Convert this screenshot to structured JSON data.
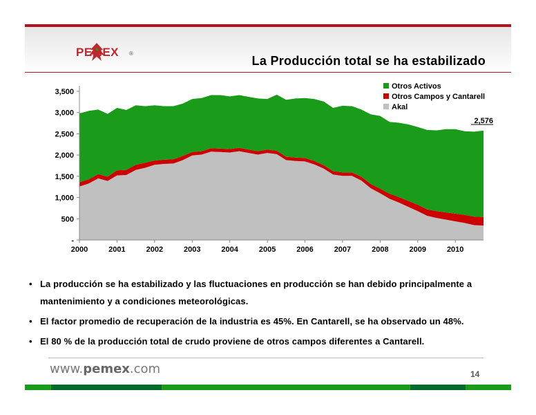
{
  "header": {
    "brand": "PEMEX",
    "registered": "®",
    "title": "La Producción total se ha estabilizado"
  },
  "chart_data": {
    "type": "area",
    "stacked": true,
    "x": [
      2000.0,
      2000.25,
      2000.5,
      2000.75,
      2001.0,
      2001.25,
      2001.5,
      2001.75,
      2002.0,
      2002.25,
      2002.5,
      2002.75,
      2003.0,
      2003.25,
      2003.5,
      2003.75,
      2004.0,
      2004.25,
      2004.5,
      2004.75,
      2005.0,
      2005.25,
      2005.5,
      2005.75,
      2006.0,
      2006.25,
      2006.5,
      2006.75,
      2007.0,
      2007.25,
      2007.5,
      2007.75,
      2008.0,
      2008.25,
      2008.5,
      2008.75,
      2009.0,
      2009.25,
      2009.5,
      2009.75,
      2010.0,
      2010.25,
      2010.5,
      2010.75
    ],
    "series": [
      {
        "name": "Akal",
        "color": "#c0c0c0",
        "values": [
          1260,
          1330,
          1450,
          1390,
          1520,
          1530,
          1650,
          1700,
          1770,
          1790,
          1800,
          1880,
          1990,
          2010,
          2080,
          2070,
          2060,
          2090,
          2050,
          2010,
          2050,
          2020,
          1880,
          1860,
          1850,
          1780,
          1680,
          1540,
          1510,
          1510,
          1400,
          1220,
          1100,
          970,
          880,
          780,
          680,
          570,
          520,
          480,
          440,
          400,
          350,
          340
        ]
      },
      {
        "name": "Otros Campos y Cantarell",
        "color": "#cc0000",
        "values": [
          100,
          100,
          100,
          100,
          120,
          120,
          120,
          120,
          100,
          100,
          100,
          100,
          80,
          80,
          80,
          80,
          80,
          80,
          80,
          80,
          80,
          80,
          80,
          80,
          80,
          80,
          80,
          80,
          80,
          80,
          90,
          100,
          110,
          120,
          130,
          140,
          150,
          150,
          160,
          170,
          180,
          190,
          200,
          200
        ]
      },
      {
        "name": "Otros Activos",
        "color": "#1a9b1a",
        "values": [
          1620,
          1610,
          1520,
          1480,
          1470,
          1410,
          1400,
          1330,
          1300,
          1260,
          1250,
          1230,
          1250,
          1250,
          1250,
          1260,
          1240,
          1240,
          1240,
          1240,
          1190,
          1320,
          1340,
          1390,
          1410,
          1460,
          1500,
          1490,
          1570,
          1560,
          1580,
          1640,
          1710,
          1690,
          1750,
          1800,
          1830,
          1870,
          1900,
          1960,
          1990,
          1970,
          2000,
          2036
        ]
      }
    ],
    "categories": [
      "2000",
      "2001",
      "2002",
      "2003",
      "2004",
      "2005",
      "2006",
      "2007",
      "2008",
      "2009",
      "2010"
    ],
    "yticks": [
      "-",
      "500",
      "1,000",
      "1,500",
      "2,000",
      "2,500",
      "3,000",
      "3,500"
    ],
    "ylim": [
      0,
      3500
    ],
    "annotation": "2,576",
    "legend_order": [
      "Otros Activos",
      "Otros Campos y Cantarell",
      "Akal"
    ],
    "legend_position": "top-right"
  },
  "bullets": [
    "La producción se ha estabilizado y las fluctuaciones en producción se han debido principalmente a mantenimiento y a condiciones meteorológicas.",
    "El factor promedio de recuperación de la industria es 45%. En Cantarell, se ha observado un 48%.",
    "El 80 % de la producción total de crudo proviene de otros campos diferentes a Cantarell."
  ],
  "bullet_marker": "•",
  "footer": {
    "url_prefix": "www.",
    "url_brand": "pemex",
    "url_suffix": ".com",
    "page": "14"
  },
  "colors": {
    "accent_red": "#b5121b",
    "green_dark": "#006b2d",
    "green_light": "#1a9b1a"
  }
}
